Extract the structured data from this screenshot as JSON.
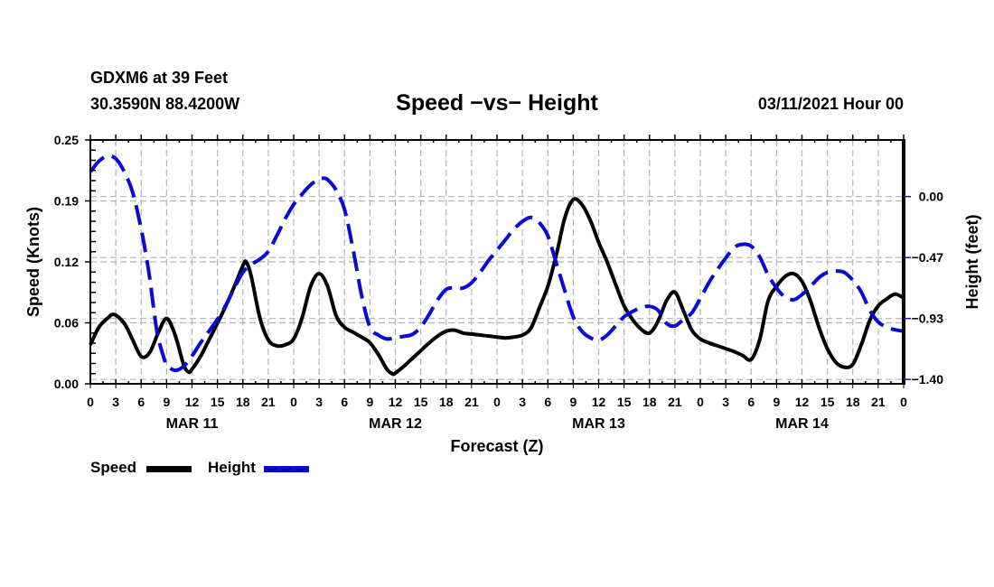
{
  "header": {
    "station": "GDXM6 at 39 Feet",
    "coords": "30.3590N 88.4200W",
    "title": "Speed −vs− Height",
    "date": "03/11/2021 Hour 00"
  },
  "legend": {
    "speed_label": "Speed",
    "height_label": "Height"
  },
  "colors": {
    "speed": "#000000",
    "height": "#0a0ad6",
    "grid": "#b4b4b4",
    "right_tick": "#1a1a8c"
  },
  "chart_data": {
    "type": "line",
    "title": "Speed −vs− Height",
    "xlabel": "Forecast (Z)",
    "ylabel": "Speed (Knots)",
    "y2label": "Height (feet)",
    "xlim": [
      0,
      96
    ],
    "ylim": [
      0,
      0.25
    ],
    "y2lim": [
      -1.4333,
      0.4333
    ],
    "grid": true,
    "legend_position": "bottom-left",
    "x_ticks": [
      0,
      3,
      6,
      9,
      12,
      15,
      18,
      21,
      24,
      27,
      30,
      33,
      36,
      39,
      42,
      45,
      48,
      51,
      54,
      57,
      60,
      63,
      66,
      69,
      72,
      75,
      78,
      81,
      84,
      87,
      90,
      93,
      96
    ],
    "x_tick_labels": [
      "0",
      "3",
      "6",
      "9",
      "12",
      "15",
      "18",
      "21",
      "0",
      "3",
      "6",
      "9",
      "12",
      "15",
      "18",
      "21",
      "0",
      "3",
      "6",
      "9",
      "12",
      "15",
      "18",
      "21",
      "0",
      "3",
      "6",
      "9",
      "12",
      "15",
      "18",
      "21",
      "0"
    ],
    "day_labels": [
      {
        "label": "MAR 11",
        "hour": 12
      },
      {
        "label": "MAR 12",
        "hour": 36
      },
      {
        "label": "MAR 13",
        "hour": 60
      },
      {
        "label": "MAR 14",
        "hour": 84
      }
    ],
    "y_ticks": [
      0,
      0.0625,
      0.125,
      0.1875,
      0.25
    ],
    "y_tick_labels": [
      "0.00",
      "0.06",
      "0.12",
      "0.19",
      "0.25"
    ],
    "y2_ticks": [
      0,
      -0.4667,
      -0.9333,
      -1.4
    ],
    "y2_tick_labels": [
      "0.00",
      "−0.47",
      "−0.93",
      "−1.40"
    ],
    "series": [
      {
        "name": "Speed",
        "axis": "left",
        "style": "solid",
        "x": [
          0,
          1,
          2,
          2.8,
          4,
          5,
          6,
          7,
          8,
          9,
          10,
          11,
          11.6,
          12,
          13,
          14,
          15,
          16,
          17,
          18,
          18.4,
          19,
          20,
          21,
          22,
          23,
          24,
          25,
          26,
          27,
          28,
          29,
          30,
          31,
          32,
          33,
          34,
          35,
          35.7,
          36,
          37,
          38,
          39,
          40,
          41,
          42,
          43,
          44,
          45,
          46,
          47,
          48,
          49,
          50,
          51,
          52,
          53,
          54,
          55,
          56,
          57,
          58,
          59,
          60,
          61,
          62,
          63,
          64,
          65,
          66,
          67,
          68,
          69,
          70,
          71,
          72,
          73,
          74,
          75,
          76,
          77,
          78,
          79,
          80,
          81,
          82,
          83,
          84,
          85,
          86,
          87,
          88,
          89,
          90,
          91,
          92,
          93,
          94,
          95,
          96
        ],
        "values": [
          0.04,
          0.058,
          0.067,
          0.071,
          0.062,
          0.045,
          0.028,
          0.032,
          0.052,
          0.067,
          0.05,
          0.02,
          0.012,
          0.015,
          0.028,
          0.045,
          0.062,
          0.08,
          0.1,
          0.121,
          0.125,
          0.11,
          0.068,
          0.045,
          0.039,
          0.04,
          0.046,
          0.068,
          0.1,
          0.113,
          0.1,
          0.07,
          0.058,
          0.053,
          0.048,
          0.042,
          0.03,
          0.015,
          0.01,
          0.011,
          0.018,
          0.026,
          0.034,
          0.042,
          0.049,
          0.054,
          0.055,
          0.052,
          0.051,
          0.05,
          0.049,
          0.048,
          0.047,
          0.048,
          0.05,
          0.057,
          0.078,
          0.1,
          0.132,
          0.17,
          0.189,
          0.184,
          0.168,
          0.145,
          0.125,
          0.102,
          0.08,
          0.066,
          0.056,
          0.052,
          0.064,
          0.085,
          0.094,
          0.075,
          0.055,
          0.046,
          0.042,
          0.039,
          0.036,
          0.033,
          0.029,
          0.025,
          0.045,
          0.085,
          0.1,
          0.11,
          0.113,
          0.105,
          0.085,
          0.058,
          0.036,
          0.022,
          0.017,
          0.02,
          0.04,
          0.065,
          0.08,
          0.087,
          0.092,
          0.088
        ]
      },
      {
        "name": "Height",
        "axis": "right",
        "style": "dashed",
        "x": [
          0,
          1,
          2,
          3,
          4,
          5,
          6,
          6.6,
          7,
          7.6,
          8,
          8.7,
          9,
          10,
          11,
          12,
          13,
          14,
          15,
          16,
          17,
          18,
          19,
          20,
          21,
          22,
          23,
          24,
          25,
          26,
          27,
          27.5,
          28,
          29,
          30,
          31,
          32,
          33,
          34,
          35,
          36,
          37,
          38,
          39,
          40,
          41,
          42,
          43,
          44,
          45,
          46,
          47,
          48,
          49,
          50,
          51,
          52,
          53,
          54,
          55,
          56,
          57,
          58,
          59,
          60,
          61,
          62,
          63,
          64,
          65,
          66,
          67,
          68,
          69,
          70,
          71,
          72,
          73,
          74,
          75,
          76,
          77,
          78,
          79,
          80,
          81,
          82,
          83,
          84,
          85,
          86,
          87,
          88,
          89,
          90,
          91,
          92,
          93,
          94,
          95,
          96
        ],
        "values": [
          0.19,
          0.27,
          0.31,
          0.29,
          0.19,
          0.03,
          -0.25,
          -0.46,
          -0.62,
          -0.92,
          -1.08,
          -1.24,
          -1.29,
          -1.33,
          -1.3,
          -1.22,
          -1.12,
          -1.03,
          -0.94,
          -0.83,
          -0.7,
          -0.58,
          -0.52,
          -0.48,
          -0.42,
          -0.3,
          -0.17,
          -0.06,
          0.02,
          0.09,
          0.135,
          0.14,
          0.13,
          0.05,
          -0.1,
          -0.4,
          -0.75,
          -1.0,
          -1.06,
          -1.09,
          -1.08,
          -1.07,
          -1.055,
          -1.0,
          -0.9,
          -0.79,
          -0.71,
          -0.7,
          -0.7,
          -0.66,
          -0.58,
          -0.49,
          -0.41,
          -0.33,
          -0.25,
          -0.19,
          -0.16,
          -0.2,
          -0.3,
          -0.51,
          -0.72,
          -0.92,
          -1.03,
          -1.08,
          -1.1,
          -1.06,
          -0.99,
          -0.92,
          -0.88,
          -0.85,
          -0.84,
          -0.87,
          -0.97,
          -0.99,
          -0.94,
          -0.89,
          -0.78,
          -0.66,
          -0.56,
          -0.47,
          -0.39,
          -0.365,
          -0.38,
          -0.46,
          -0.6,
          -0.7,
          -0.77,
          -0.79,
          -0.75,
          -0.69,
          -0.62,
          -0.58,
          -0.57,
          -0.58,
          -0.64,
          -0.73,
          -0.87,
          -0.96,
          -1.0,
          -1.02,
          -1.03
        ]
      }
    ]
  }
}
